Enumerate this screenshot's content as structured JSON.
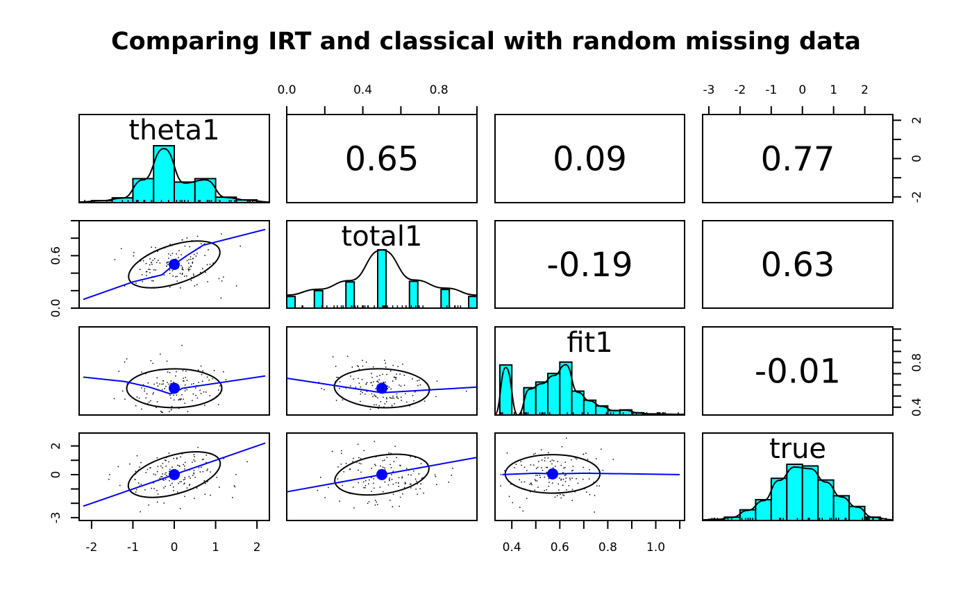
{
  "chart_data": {
    "type": "scatter",
    "subtype": "pairs-panels (SPLOM)",
    "title": "Comparing IRT and classical with random missing data",
    "variables": [
      "theta1",
      "total1",
      "fit1",
      "true"
    ],
    "colors": {
      "histogram_fill": "#00ffff",
      "loess_line": "#0000ff",
      "centroid": "#0000ff",
      "ellipse": "#000000"
    },
    "ranges": {
      "theta1": [
        -2.3,
        2.3
      ],
      "total1": [
        0.0,
        1.0
      ],
      "fit1": [
        0.33,
        1.12
      ],
      "true": [
        -3.2,
        2.9
      ]
    },
    "axes": {
      "top": [
        {
          "variable": "total1",
          "ticks": [
            0.0,
            0.2,
            0.4,
            0.6,
            0.8,
            1.0
          ],
          "labels": [
            "0.0",
            "0.4",
            "0.8"
          ]
        },
        {
          "variable": "true",
          "ticks": [
            -3,
            -2,
            -1,
            0,
            1,
            2
          ],
          "labels": [
            "-3",
            "-2",
            "-1",
            "0",
            "1",
            "2"
          ]
        }
      ],
      "bottom": [
        {
          "variable": "theta1",
          "ticks": [
            -2,
            -1,
            0,
            1,
            2
          ],
          "labels": [
            "-2",
            "-1",
            "0",
            "1",
            "2"
          ]
        },
        {
          "variable": "fit1",
          "ticks": [
            0.4,
            0.5,
            0.6,
            0.7,
            0.8,
            0.9,
            1.0,
            1.1
          ],
          "labels": [
            "0.4",
            "0.6",
            "0.8",
            "1.0"
          ]
        }
      ],
      "left": [
        {
          "variable": "total1",
          "ticks": [
            0.0,
            0.2,
            0.4,
            0.6,
            0.8,
            1.0
          ],
          "labels": [
            "0.0",
            "0.6"
          ]
        },
        {
          "variable": "true",
          "ticks": [
            -3,
            -2,
            -1,
            0,
            1,
            2
          ],
          "labels": [
            "-3",
            "0",
            "2"
          ]
        }
      ],
      "right": [
        {
          "variable": "theta1",
          "ticks": [
            -2,
            -1,
            0,
            1,
            2
          ],
          "labels": [
            "-2",
            "0",
            "2"
          ]
        },
        {
          "variable": "fit1",
          "ticks": [
            0.4,
            0.5,
            0.6,
            0.7,
            0.8,
            0.9,
            1.0,
            1.1
          ],
          "labels": [
            "0.4",
            "0.8"
          ]
        }
      ]
    },
    "correlations": [
      {
        "row": "theta1",
        "col": "total1",
        "value": "0.65"
      },
      {
        "row": "theta1",
        "col": "fit1",
        "value": "0.09"
      },
      {
        "row": "theta1",
        "col": "true",
        "value": "0.77"
      },
      {
        "row": "total1",
        "col": "fit1",
        "value": "-0.19"
      },
      {
        "row": "total1",
        "col": "true",
        "value": "0.63"
      },
      {
        "row": "fit1",
        "col": "true",
        "value": "-0.01"
      }
    ],
    "histograms": {
      "theta1": {
        "breaks": [
          -2.0,
          -1.5,
          -1.0,
          -0.5,
          0.0,
          0.5,
          1.0,
          1.5,
          2.0
        ],
        "density": [
          0.03,
          0.07,
          0.35,
          0.83,
          0.3,
          0.35,
          0.08,
          0.04
        ]
      },
      "total1": {
        "centers": [
          0.0,
          0.167,
          0.333,
          0.5,
          0.667,
          0.833,
          1.0
        ],
        "relative_heights": [
          0.2,
          0.3,
          0.45,
          1.0,
          0.46,
          0.32,
          0.2
        ]
      },
      "fit1": {
        "breaks": [
          0.35,
          0.4,
          0.45,
          0.5,
          0.55,
          0.6,
          0.65,
          0.7,
          0.75,
          0.8,
          0.85,
          0.9,
          0.95,
          1.0
        ],
        "relative_heights": [
          0.88,
          0.0,
          0.48,
          0.58,
          0.73,
          0.93,
          0.42,
          0.26,
          0.16,
          0.08,
          0.09,
          0.04,
          0.02
        ]
      },
      "true": {
        "breaks": [
          -3.0,
          -2.5,
          -2.0,
          -1.5,
          -1.0,
          -0.5,
          0.0,
          0.5,
          1.0,
          1.5,
          2.0,
          2.5
        ],
        "relative_heights": [
          0.02,
          0.06,
          0.19,
          0.37,
          0.75,
          1.0,
          0.97,
          0.72,
          0.44,
          0.25,
          0.06
        ]
      }
    },
    "scatter_summaries": [
      {
        "x": "theta1",
        "y": "total1",
        "centroid": [
          0.0,
          0.5
        ],
        "loess": [
          [
            -2.2,
            0.1
          ],
          [
            -1.0,
            0.3
          ],
          [
            -0.3,
            0.38
          ],
          [
            0.0,
            0.5
          ],
          [
            0.3,
            0.6
          ],
          [
            0.7,
            0.72
          ],
          [
            2.2,
            0.9
          ]
        ]
      },
      {
        "x": "theta1",
        "y": "fit1",
        "centroid": [
          0.0,
          0.57
        ],
        "loess": [
          [
            -2.2,
            0.67
          ],
          [
            -1.2,
            0.63
          ],
          [
            -0.6,
            0.58
          ],
          [
            -0.1,
            0.52
          ],
          [
            0.0,
            0.53
          ],
          [
            0.2,
            0.57
          ],
          [
            2.2,
            0.68
          ]
        ]
      },
      {
        "x": "total1",
        "y": "fit1",
        "centroid": [
          0.5,
          0.57
        ],
        "loess": [
          [
            0.0,
            0.66
          ],
          [
            0.5,
            0.53
          ],
          [
            1.0,
            0.58
          ]
        ]
      },
      {
        "x": "theta1",
        "y": "true",
        "centroid": [
          0.0,
          0.0
        ],
        "loess": [
          [
            -2.2,
            -2.2
          ],
          [
            0.0,
            0.0
          ],
          [
            2.2,
            2.2
          ]
        ]
      },
      {
        "x": "total1",
        "y": "true",
        "centroid": [
          0.5,
          0.0
        ],
        "loess": [
          [
            0.0,
            -1.2
          ],
          [
            0.5,
            0.0
          ],
          [
            1.0,
            1.2
          ]
        ]
      },
      {
        "x": "fit1",
        "y": "true",
        "centroid": [
          0.57,
          0.05
        ],
        "loess": [
          [
            0.36,
            0.0
          ],
          [
            0.5,
            0.1
          ],
          [
            0.57,
            0.05
          ],
          [
            0.7,
            0.1
          ],
          [
            1.1,
            0.0
          ]
        ]
      }
    ]
  }
}
